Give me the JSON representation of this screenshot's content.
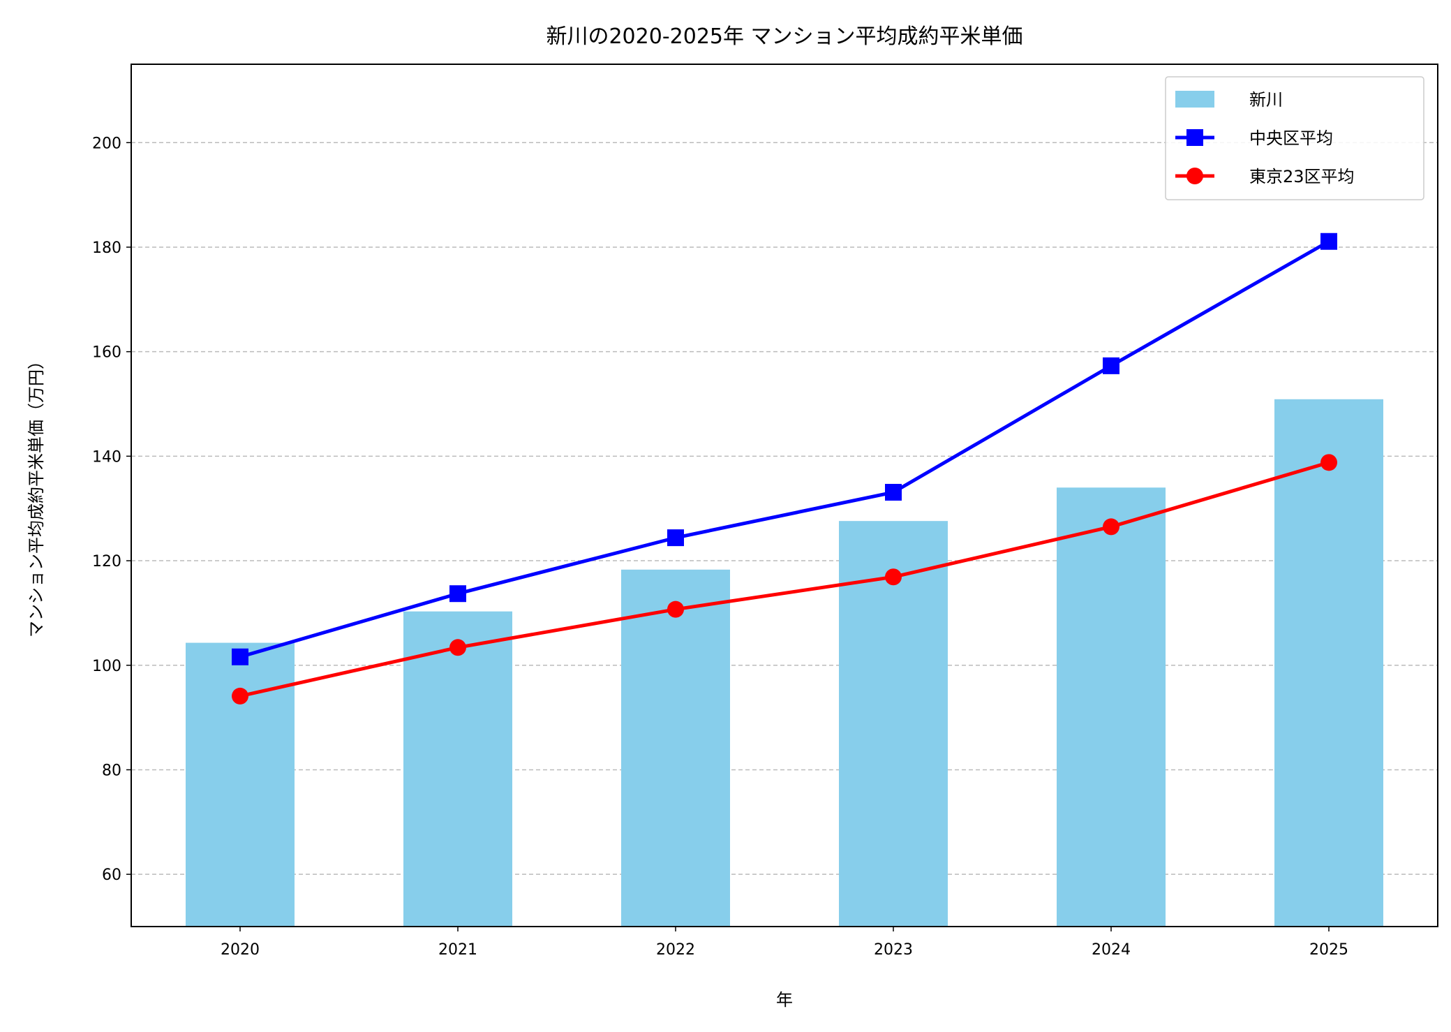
{
  "chart_data": {
    "type": "bar+line",
    "title": "新川の2020-2025年 マンション平均成約平米単価",
    "xlabel": "年",
    "ylabel": "マンション平均成約平米単価（万円）",
    "categories": [
      "2020",
      "2021",
      "2022",
      "2023",
      "2024",
      "2025"
    ],
    "ylim": [
      50,
      215
    ],
    "yticks": [
      60,
      80,
      100,
      120,
      140,
      160,
      180,
      200
    ],
    "grid": "y-dashed",
    "legend_position": "top-right",
    "series": [
      {
        "name": "新川",
        "kind": "bar",
        "color": "#87CEEB",
        "values": [
          104.3,
          110.3,
          118.3,
          127.6,
          134.0,
          150.9
        ]
      },
      {
        "name": "中央区平均",
        "kind": "line",
        "marker": "square",
        "color": "#0000FF",
        "values": [
          101.6,
          113.7,
          124.4,
          133.1,
          157.3,
          181.1
        ]
      },
      {
        "name": "東京23区平均",
        "kind": "line",
        "marker": "circle",
        "color": "#FF0000",
        "values": [
          94.1,
          103.4,
          110.7,
          116.9,
          126.5,
          138.8
        ]
      }
    ]
  }
}
